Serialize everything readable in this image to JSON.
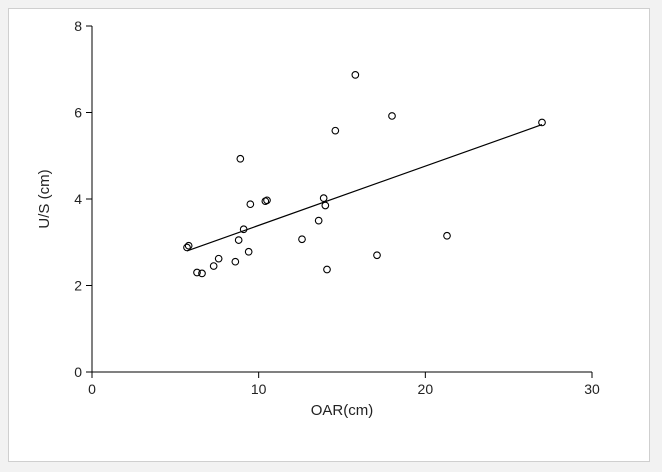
{
  "chart_data": {
    "type": "scatter",
    "title": "",
    "xlabel": "OAR(cm)",
    "ylabel": "U/S (cm)",
    "xlim": [
      0,
      30
    ],
    "ylim": [
      0,
      8
    ],
    "x_ticks": [
      0,
      10,
      20,
      30
    ],
    "y_ticks": [
      0,
      2,
      4,
      6,
      8
    ],
    "x_tick_labels": [
      "0",
      "10",
      "20",
      "30"
    ],
    "y_tick_labels": [
      "0",
      "2",
      "4",
      "6",
      "8"
    ],
    "grid": false,
    "legend": "none",
    "series": [
      {
        "points": [
          {
            "x": 5.7,
            "y": 2.88
          },
          {
            "x": 5.8,
            "y": 2.92
          },
          {
            "x": 6.3,
            "y": 2.3
          },
          {
            "x": 6.6,
            "y": 2.28
          },
          {
            "x": 7.3,
            "y": 2.45
          },
          {
            "x": 7.6,
            "y": 2.62
          },
          {
            "x": 8.6,
            "y": 2.55
          },
          {
            "x": 8.8,
            "y": 3.05
          },
          {
            "x": 8.9,
            "y": 4.93
          },
          {
            "x": 9.1,
            "y": 3.3
          },
          {
            "x": 9.4,
            "y": 2.78
          },
          {
            "x": 9.5,
            "y": 3.88
          },
          {
            "x": 10.4,
            "y": 3.95
          },
          {
            "x": 10.5,
            "y": 3.97
          },
          {
            "x": 12.6,
            "y": 3.07
          },
          {
            "x": 13.6,
            "y": 3.5
          },
          {
            "x": 13.9,
            "y": 4.02
          },
          {
            "x": 14.0,
            "y": 3.85
          },
          {
            "x": 14.1,
            "y": 2.37
          },
          {
            "x": 14.6,
            "y": 5.58
          },
          {
            "x": 15.8,
            "y": 6.87
          },
          {
            "x": 17.1,
            "y": 2.7
          },
          {
            "x": 18.0,
            "y": 5.92
          },
          {
            "x": 21.3,
            "y": 3.15
          },
          {
            "x": 27.0,
            "y": 5.77
          }
        ]
      }
    ],
    "fit_line": {
      "x": [
        5.7,
        27.0
      ],
      "y": [
        2.8,
        5.72
      ]
    }
  },
  "colors": {
    "background": "#ffffff",
    "axis": "#000000",
    "marker": "#000000",
    "line": "#000000"
  }
}
